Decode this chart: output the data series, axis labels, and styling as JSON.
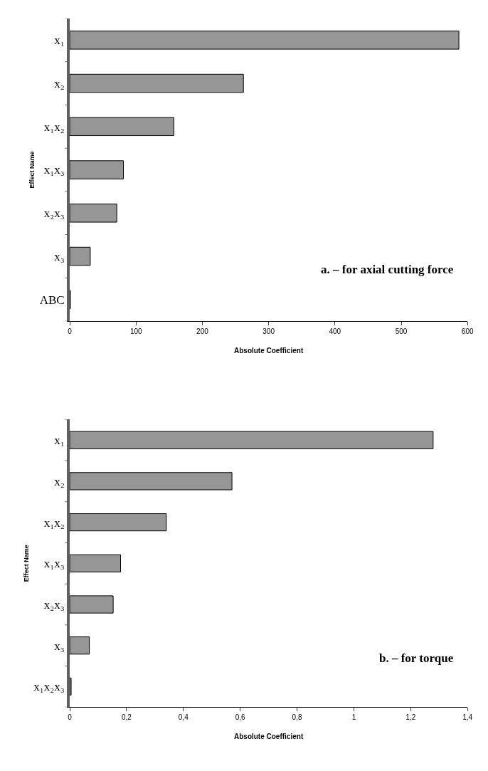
{
  "chart_data": [
    {
      "type": "bar",
      "orientation": "horizontal",
      "categories": [
        "x₁",
        "x₂",
        "x₁x₂",
        "x₁x₃",
        "x₂x₃",
        "x₃",
        "ABC"
      ],
      "values": [
        587,
        262,
        157,
        81,
        71,
        31,
        1
      ],
      "color": "#969696",
      "xlim": [
        0,
        600
      ],
      "xticks": [
        0,
        100,
        200,
        300,
        400,
        500,
        600
      ],
      "xlabel": "Absolute Coefficient",
      "ylabel": "Effect Name",
      "annotations": [
        "a. – for axial cutting force"
      ]
    },
    {
      "type": "bar",
      "orientation": "horizontal",
      "categories": [
        "x₁",
        "x₂",
        "x₁x₂",
        "x₁x₃",
        "x₂x₃",
        "x₃",
        "x₁x₂x₃"
      ],
      "values": [
        1.279,
        0.571,
        0.34,
        0.179,
        0.153,
        0.069,
        0.005
      ],
      "color": "#969696",
      "xlim": [
        0,
        1.4
      ],
      "xticks": [
        0,
        {
          "value": 0.2,
          "label": "0,2"
        },
        {
          "value": 0.4,
          "label": "0,4"
        },
        {
          "value": 0.6,
          "label": "0,6"
        },
        {
          "value": 0.8,
          "label": "0,8"
        },
        1,
        {
          "value": 1.2,
          "label": "1,2"
        },
        {
          "value": 1.4,
          "label": "1,4"
        }
      ],
      "xlabel": "Absolute Coefficient",
      "ylabel": "Effect Name",
      "annotations": [
        "b. – for torque"
      ]
    }
  ]
}
